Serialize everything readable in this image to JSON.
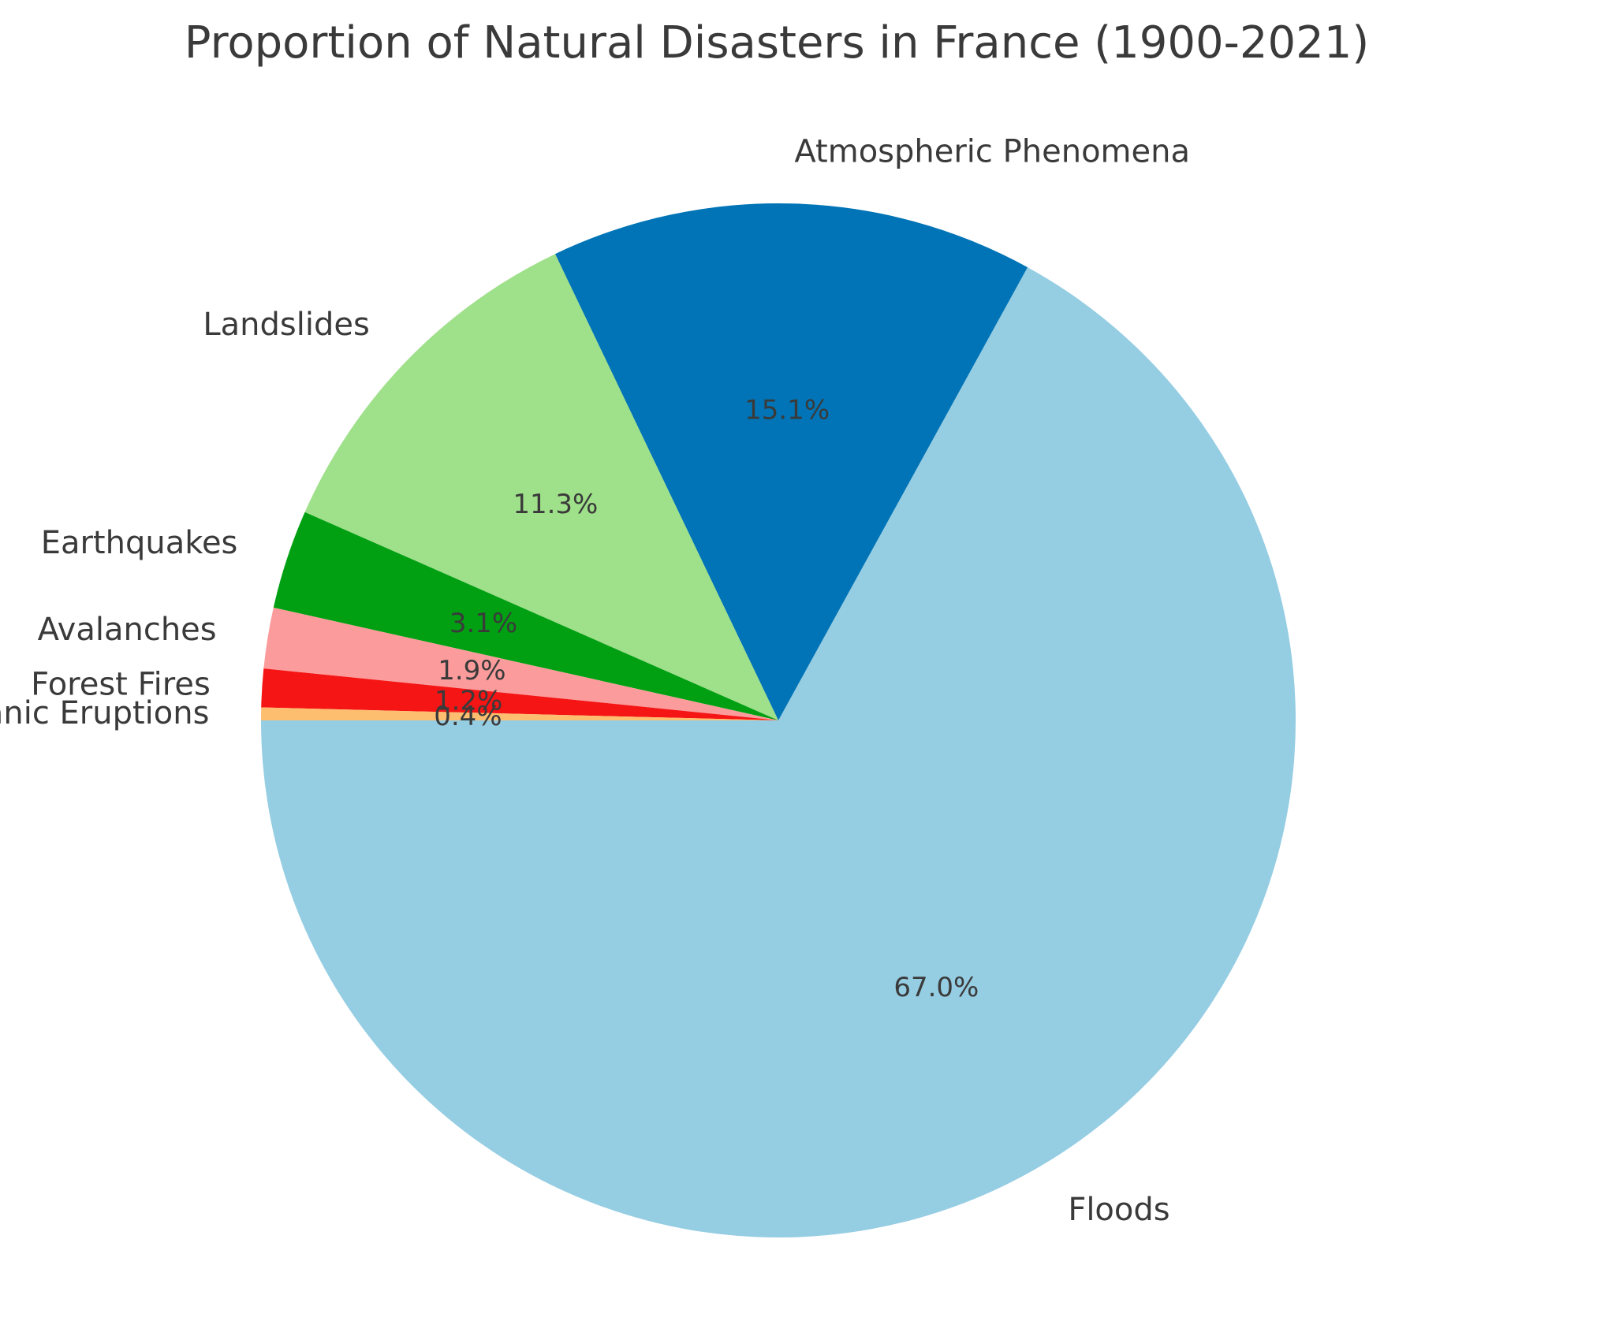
{
  "chart_data": {
    "type": "pie",
    "title": "Proportion of Natural Disasters in France (1900-2021)",
    "start_angle_deg": 180,
    "slices": [
      {
        "label": "Floods",
        "value": 67.0,
        "pct_label": "67.0%",
        "color": "#95cde3"
      },
      {
        "label": "Atmospheric Phenomena",
        "value": 15.1,
        "pct_label": "15.1%",
        "color": "#0074b6"
      },
      {
        "label": "Landslides",
        "value": 11.3,
        "pct_label": "11.3%",
        "color": "#9fe08a"
      },
      {
        "label": "Earthquakes",
        "value": 3.1,
        "pct_label": "3.1%",
        "color": "#00a012"
      },
      {
        "label": "Avalanches",
        "value": 1.9,
        "pct_label": "1.9%",
        "color": "#fb9b9b"
      },
      {
        "label": "Forest Fires",
        "value": 1.2,
        "pct_label": "1.2%",
        "color": "#f51515"
      },
      {
        "label": "Volcanic Eruptions",
        "value": 0.4,
        "pct_label": "0.4%",
        "color": "#fdbe70"
      }
    ]
  }
}
